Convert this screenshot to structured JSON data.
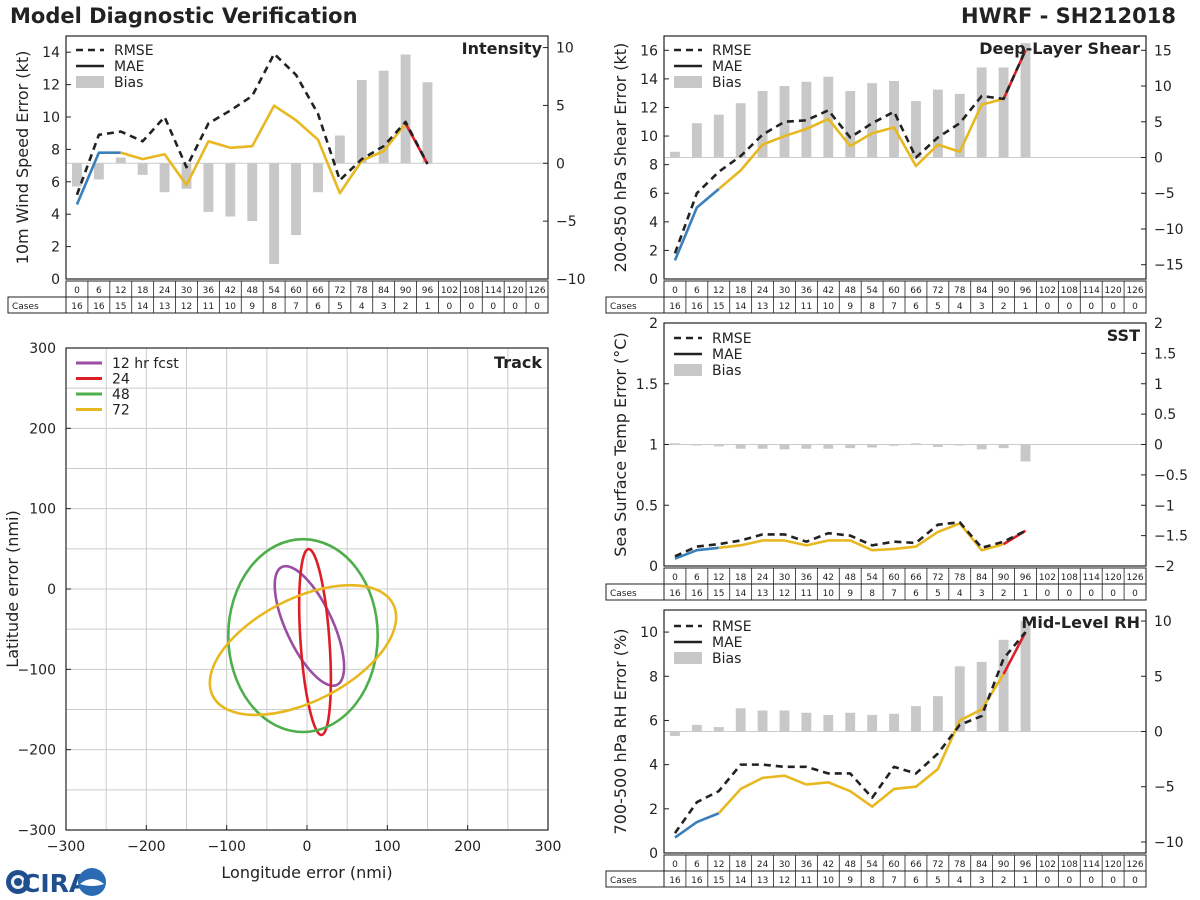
{
  "header": {
    "title_left": "Model Diagnostic Verification",
    "title_right": "HWRF - SH212018"
  },
  "logo": {
    "text": "CIRA"
  },
  "legend_labels": {
    "rmse": "RMSE",
    "mae": "MAE",
    "bias": "Bias"
  },
  "cases_label": "Cases",
  "colors": {
    "blue": "#3a7fbb",
    "yellow": "#e8b820",
    "red": "#dc1f26",
    "bias": "#c8c8c8",
    "purple": "#9a4ea3",
    "green": "#4daf4a",
    "grid": "#cccccc"
  },
  "leads": [
    "0",
    "6",
    "12",
    "18",
    "24",
    "30",
    "36",
    "42",
    "48",
    "54",
    "60",
    "66",
    "72",
    "78",
    "84",
    "90",
    "96",
    "102",
    "108",
    "114",
    "120",
    "126"
  ],
  "cases": [
    "16",
    "16",
    "15",
    "14",
    "13",
    "12",
    "11",
    "10",
    "9",
    "8",
    "7",
    "6",
    "5",
    "4",
    "3",
    "2",
    "1",
    "0",
    "0",
    "0",
    "0",
    "0"
  ],
  "chart_data": [
    {
      "id": "intensity",
      "type": "line",
      "title": "Intensity",
      "ylabel": "10m Wind Speed Error (kt)",
      "ylim": [
        0,
        15
      ],
      "yticks": [
        0,
        2,
        4,
        6,
        8,
        10,
        12,
        14
      ],
      "y2lim": [
        -10,
        11
      ],
      "y2ticks": [
        -10,
        -5,
        0,
        5,
        10
      ],
      "x": [
        0,
        6,
        12,
        18,
        24,
        30,
        36,
        42,
        48,
        54,
        60,
        66,
        72,
        78,
        84,
        90,
        96
      ],
      "rmse": [
        5.2,
        8.9,
        9.1,
        8.5,
        10.0,
        6.9,
        9.6,
        10.4,
        11.3,
        13.9,
        12.6,
        10.2,
        6.1,
        7.4,
        8.2,
        9.7,
        7.1
      ],
      "mae": [
        4.6,
        7.8,
        7.8,
        7.4,
        7.7,
        5.8,
        8.5,
        8.1,
        8.2,
        10.7,
        9.8,
        8.6,
        5.3,
        7.3,
        7.9,
        9.6,
        7.1
      ],
      "bias": [
        -2.0,
        -1.4,
        0.5,
        -1.0,
        -2.5,
        -2.2,
        -4.2,
        -4.6,
        -5.0,
        -8.7,
        -6.2,
        -2.5,
        2.4,
        7.2,
        8.0,
        9.4,
        7.0
      ]
    },
    {
      "id": "shear",
      "type": "line",
      "title": "Deep-Layer Shear",
      "ylabel": "200-850 hPa Shear Error (kt)",
      "ylim": [
        0,
        17
      ],
      "yticks": [
        0,
        2,
        4,
        6,
        8,
        10,
        12,
        14,
        16
      ],
      "y2lim": [
        -17,
        17
      ],
      "y2ticks": [
        -15,
        -10,
        -5,
        0,
        5,
        10,
        15
      ],
      "x": [
        0,
        6,
        12,
        18,
        24,
        30,
        36,
        42,
        48,
        54,
        60,
        66,
        72,
        78,
        84,
        90,
        96
      ],
      "rmse": [
        1.8,
        6.0,
        7.5,
        8.6,
        10.1,
        11.0,
        11.1,
        11.8,
        9.9,
        10.9,
        11.7,
        8.5,
        9.9,
        10.9,
        12.8,
        12.6,
        16.0
      ],
      "mae": [
        1.3,
        5.0,
        6.3,
        7.6,
        9.4,
        10.0,
        10.5,
        11.2,
        9.3,
        10.2,
        10.6,
        7.9,
        9.4,
        8.9,
        12.2,
        12.6,
        16.0
      ],
      "bias": [
        0.8,
        4.8,
        6.0,
        7.6,
        9.3,
        10.0,
        10.6,
        11.3,
        9.3,
        10.4,
        10.7,
        7.9,
        9.5,
        8.9,
        12.6,
        12.6,
        16.0
      ]
    },
    {
      "id": "sst",
      "type": "line",
      "title": "SST",
      "ylabel": "Sea Surface Temp Error (°C)",
      "ylim": [
        0,
        2.0
      ],
      "yticks": [
        0.0,
        0.5,
        1.0,
        1.5,
        2.0
      ],
      "y2lim": [
        -2.0,
        2.0
      ],
      "y2ticks": [
        -2.0,
        -1.5,
        -1.0,
        -0.5,
        0.0,
        0.5,
        1.0,
        1.5,
        2.0
      ],
      "x": [
        0,
        6,
        12,
        18,
        24,
        30,
        36,
        42,
        48,
        54,
        60,
        66,
        72,
        78,
        84,
        90,
        96
      ],
      "rmse": [
        0.08,
        0.16,
        0.18,
        0.21,
        0.26,
        0.26,
        0.2,
        0.27,
        0.25,
        0.17,
        0.2,
        0.19,
        0.34,
        0.36,
        0.15,
        0.2,
        0.29
      ],
      "mae": [
        0.06,
        0.13,
        0.15,
        0.17,
        0.21,
        0.21,
        0.17,
        0.21,
        0.21,
        0.13,
        0.14,
        0.16,
        0.28,
        0.35,
        0.13,
        0.18,
        0.29
      ],
      "bias": [
        0.02,
        0.0,
        -0.03,
        -0.07,
        -0.07,
        -0.08,
        -0.07,
        -0.07,
        -0.06,
        -0.05,
        -0.02,
        0.02,
        -0.04,
        0.0,
        -0.08,
        -0.06,
        -0.28
      ]
    },
    {
      "id": "rh",
      "type": "line",
      "title": "Mid-Level RH",
      "ylabel": "700-500 hPa RH Error (%)",
      "ylim": [
        0,
        11
      ],
      "yticks": [
        0,
        2,
        4,
        6,
        8,
        10
      ],
      "y2lim": [
        -11,
        11
      ],
      "y2ticks": [
        -10,
        -5,
        0,
        5,
        10
      ],
      "x": [
        0,
        6,
        12,
        18,
        24,
        30,
        36,
        42,
        48,
        54,
        60,
        66,
        72,
        78,
        84,
        90,
        96
      ],
      "rmse": [
        0.9,
        2.3,
        2.8,
        4.0,
        4.0,
        3.9,
        3.9,
        3.6,
        3.6,
        2.5,
        3.9,
        3.6,
        4.5,
        5.8,
        6.2,
        8.8,
        10.0
      ],
      "mae": [
        0.7,
        1.4,
        1.8,
        2.9,
        3.4,
        3.5,
        3.1,
        3.2,
        2.8,
        2.1,
        2.9,
        3.0,
        3.8,
        6.0,
        6.5,
        8.1,
        10.0
      ],
      "bias": [
        -0.4,
        0.6,
        0.4,
        2.1,
        1.9,
        1.9,
        1.7,
        1.5,
        1.7,
        1.5,
        1.6,
        2.3,
        3.2,
        5.9,
        6.3,
        8.3,
        10.0
      ]
    },
    {
      "id": "track",
      "type": "scatter",
      "title": "Track",
      "xlabel": "Longitude error (nmi)",
      "ylabel": "Latitude error (nmi)",
      "xlim": [
        -300,
        300
      ],
      "ylim": [
        -300,
        300
      ],
      "xticks": [
        -300,
        -200,
        -100,
        0,
        100,
        200,
        300
      ],
      "yticks": [
        -300,
        -200,
        -100,
        0,
        100,
        200,
        300
      ],
      "ellipses": [
        {
          "label": "12 hr fcst",
          "color": "#9a4ea3",
          "cx": 3,
          "cy": -46,
          "rx": 29,
          "ry": 81,
          "angle_deg": -25
        },
        {
          "label": "24",
          "color": "#dc1f26",
          "cx": 10,
          "cy": -66,
          "rx": 18,
          "ry": 116,
          "angle_deg": -4
        },
        {
          "label": "48",
          "color": "#4daf4a",
          "cx": -5,
          "cy": -58,
          "rx": 93,
          "ry": 120,
          "angle_deg": 0
        },
        {
          "label": "72",
          "color": "#e8b820",
          "cx": -5,
          "cy": -76,
          "rx": 126,
          "ry": 64,
          "angle_deg": -27
        }
      ]
    }
  ]
}
